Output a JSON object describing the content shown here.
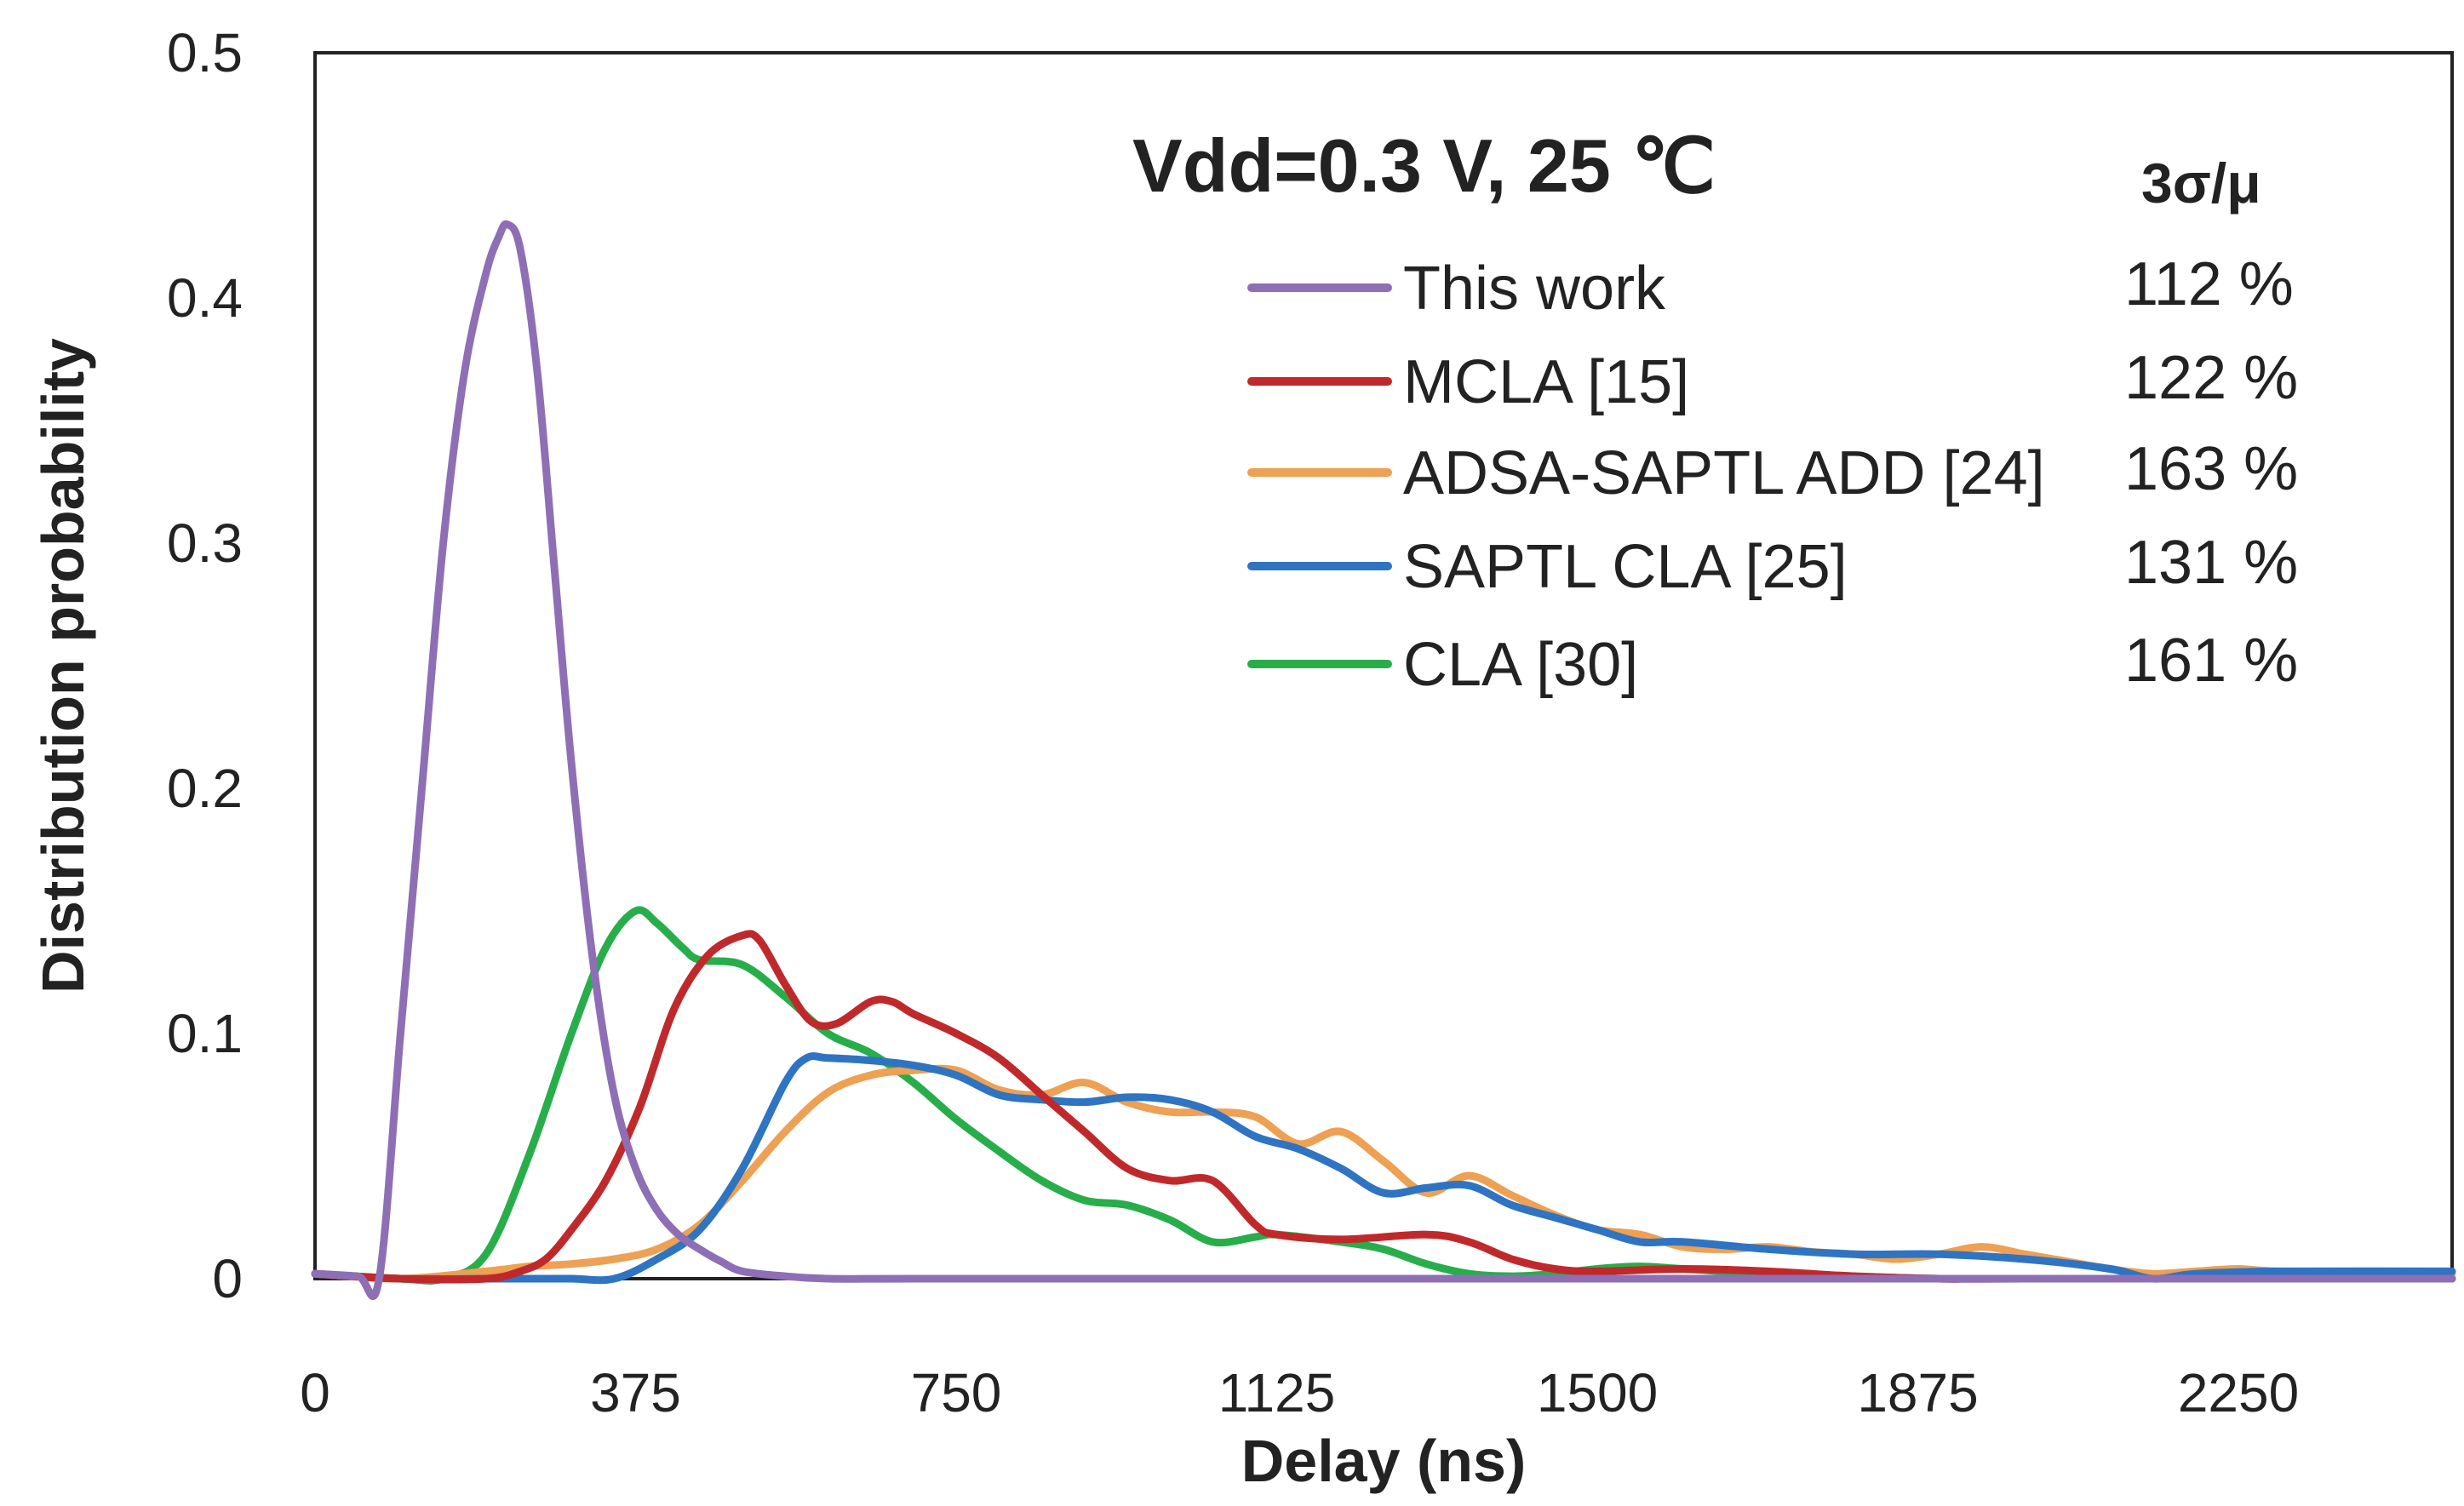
{
  "chart_data": {
    "type": "line",
    "title": "Vdd=0.3 V, 25 ℃",
    "xlabel": "Delay (ns)",
    "ylabel": "Distribution probability",
    "xlim": [
      0,
      2500
    ],
    "ylim": [
      0,
      0.5
    ],
    "xticks": [
      "0",
      "375",
      "750",
      "1125",
      "1500",
      "1875",
      "2250"
    ],
    "xtick_values": [
      0,
      375,
      750,
      1125,
      1500,
      1875,
      2250
    ],
    "yticks": [
      "0",
      "0.1",
      "0.2",
      "0.3",
      "0.4",
      "0.5"
    ],
    "ytick_values": [
      0,
      0.1,
      0.2,
      0.3,
      0.4,
      0.5
    ],
    "grid": false,
    "legend_position": "top-right",
    "legend_header": "3σ/μ",
    "series": [
      {
        "name": "This work",
        "stat": "112 %",
        "color": "#8e6fb5",
        "x": [
          0,
          50,
          75,
          100,
          125,
          150,
          175,
          200,
          215,
          225,
          240,
          260,
          280,
          300,
          325,
          350,
          375,
          400,
          425,
          450,
          475,
          500,
          550,
          600,
          700,
          900,
          1200,
          1500,
          2000,
          2500
        ],
        "y": [
          0.002,
          0.001,
          0.0,
          0.1,
          0.2,
          0.3,
          0.37,
          0.41,
          0.425,
          0.43,
          0.42,
          0.37,
          0.29,
          0.21,
          0.13,
          0.075,
          0.045,
          0.028,
          0.018,
          0.012,
          0.007,
          0.003,
          0.001,
          0.0,
          0.0,
          0.0,
          0.0,
          0.0,
          0.0,
          0.0
        ]
      },
      {
        "name": "MCLA [15]",
        "stat": "122 %",
        "color": "#c0292b",
        "x": [
          0,
          100,
          200,
          240,
          270,
          300,
          340,
          380,
          420,
          460,
          500,
          520,
          550,
          580,
          610,
          650,
          675,
          700,
          750,
          800,
          850,
          900,
          950,
          1000,
          1050,
          1100,
          1125,
          1200,
          1300,
          1350,
          1400,
          1450,
          1500,
          1600,
          1700,
          1800,
          1900,
          2000,
          2500
        ],
        "y": [
          0.002,
          0.0,
          0.0,
          0.003,
          0.008,
          0.02,
          0.04,
          0.07,
          0.11,
          0.132,
          0.14,
          0.138,
          0.12,
          0.105,
          0.104,
          0.113,
          0.113,
          0.108,
          0.1,
          0.09,
          0.075,
          0.06,
          0.045,
          0.04,
          0.04,
          0.022,
          0.018,
          0.016,
          0.018,
          0.015,
          0.008,
          0.004,
          0.003,
          0.004,
          0.003,
          0.001,
          0.0,
          0.0,
          0.0
        ]
      },
      {
        "name": "ADSA-SAPTL ADD [24]",
        "stat": "163 %",
        "color": "#eea053",
        "x": [
          0,
          100,
          200,
          250,
          300,
          350,
          400,
          450,
          500,
          550,
          600,
          650,
          700,
          750,
          800,
          850,
          900,
          950,
          1000,
          1050,
          1100,
          1150,
          1200,
          1250,
          1300,
          1350,
          1400,
          1450,
          1500,
          1550,
          1600,
          1650,
          1700,
          1750,
          1800,
          1850,
          1900,
          1950,
          2000,
          2050,
          2100,
          2150,
          2200,
          2250,
          2300,
          2500
        ],
        "y": [
          0.002,
          0.0,
          0.003,
          0.005,
          0.006,
          0.008,
          0.012,
          0.022,
          0.04,
          0.06,
          0.076,
          0.083,
          0.085,
          0.085,
          0.077,
          0.075,
          0.08,
          0.072,
          0.068,
          0.068,
          0.066,
          0.055,
          0.06,
          0.048,
          0.035,
          0.042,
          0.034,
          0.026,
          0.02,
          0.018,
          0.013,
          0.012,
          0.013,
          0.011,
          0.01,
          0.008,
          0.01,
          0.013,
          0.01,
          0.007,
          0.004,
          0.002,
          0.003,
          0.004,
          0.003,
          0.002
        ]
      },
      {
        "name": "SAPTL CLA [25]",
        "stat": "131 %",
        "color": "#2e74c2",
        "x": [
          0,
          100,
          200,
          250,
          300,
          350,
          400,
          450,
          500,
          550,
          575,
          600,
          650,
          700,
          750,
          800,
          850,
          900,
          950,
          1000,
          1050,
          1100,
          1150,
          1200,
          1250,
          1300,
          1350,
          1400,
          1450,
          1500,
          1550,
          1600,
          1700,
          1800,
          1900,
          2000,
          2100,
          2150,
          2200,
          2300,
          2500
        ],
        "y": [
          0.002,
          0.0,
          0.0,
          0.0,
          0.0,
          0.0,
          0.008,
          0.02,
          0.045,
          0.08,
          0.09,
          0.09,
          0.089,
          0.087,
          0.083,
          0.075,
          0.073,
          0.072,
          0.074,
          0.073,
          0.068,
          0.058,
          0.053,
          0.045,
          0.035,
          0.037,
          0.038,
          0.03,
          0.025,
          0.02,
          0.015,
          0.015,
          0.012,
          0.01,
          0.01,
          0.008,
          0.004,
          0.0,
          0.002,
          0.003,
          0.003
        ]
      },
      {
        "name": "CLA [30]",
        "stat": "161 %",
        "color": "#27ae4b",
        "x": [
          0,
          100,
          150,
          200,
          250,
          300,
          340,
          375,
          400,
          430,
          450,
          500,
          550,
          600,
          650,
          700,
          750,
          800,
          850,
          900,
          950,
          1000,
          1050,
          1100,
          1125,
          1200,
          1250,
          1300,
          1350,
          1400,
          1450,
          1500,
          1550,
          1600,
          1700,
          1800,
          1900,
          2000,
          2500
        ],
        "y": [
          0.002,
          0.0,
          0.0,
          0.01,
          0.05,
          0.1,
          0.135,
          0.15,
          0.145,
          0.135,
          0.13,
          0.128,
          0.115,
          0.1,
          0.092,
          0.08,
          0.065,
          0.052,
          0.04,
          0.032,
          0.03,
          0.024,
          0.015,
          0.017,
          0.018,
          0.015,
          0.012,
          0.006,
          0.002,
          0.001,
          0.002,
          0.004,
          0.005,
          0.004,
          0.002,
          0.001,
          0.0,
          0.0,
          0.0
        ]
      }
    ]
  }
}
